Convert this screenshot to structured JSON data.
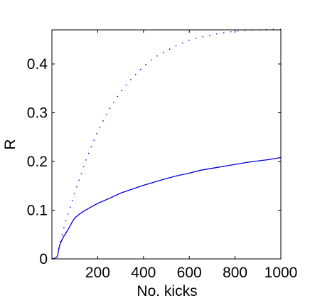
{
  "chart_data": {
    "type": "line",
    "title": "",
    "xlabel": "No. kicks",
    "ylabel": "R",
    "xlim": [
      0,
      1000
    ],
    "ylim": [
      0,
      0.47
    ],
    "xticks": [
      200,
      400,
      600,
      800,
      1000
    ],
    "xtick_labels": [
      "200",
      "400",
      "600",
      "800",
      "1000"
    ],
    "yticks": [
      0,
      0.1,
      0.2,
      0.3,
      0.4
    ],
    "ytick_labels": [
      "0",
      "0.1",
      "0.2",
      "0.3",
      "0.4"
    ],
    "grid": false,
    "colors": {
      "series": "#0000dd",
      "axes": "#000000"
    },
    "series": [
      {
        "style": "dotted",
        "color": "#0000dd",
        "x": [
          0,
          15,
          25,
          30,
          40,
          50,
          60,
          80,
          100,
          120,
          150,
          200,
          250,
          300,
          350,
          400,
          450,
          500,
          550,
          600,
          650,
          700,
          750,
          800,
          850,
          900,
          950,
          1000
        ],
        "y": [
          0,
          0.002,
          0.006,
          0.02,
          0.04,
          0.06,
          0.077,
          0.106,
          0.136,
          0.164,
          0.205,
          0.262,
          0.307,
          0.343,
          0.371,
          0.395,
          0.414,
          0.427,
          0.439,
          0.449,
          0.455,
          0.46,
          0.464,
          0.467,
          0.469,
          0.47,
          0.471,
          0.471
        ]
      },
      {
        "style": "solid",
        "color": "#0000dd",
        "x": [
          0,
          10,
          20,
          25,
          30,
          35,
          40,
          50,
          60,
          70,
          80,
          90,
          100,
          120,
          150,
          200,
          250,
          300,
          350,
          400,
          450,
          500,
          550,
          600,
          650,
          700,
          750,
          800,
          850,
          900,
          950,
          1000
        ],
        "y": [
          0,
          0.001,
          0.003,
          0.006,
          0.02,
          0.03,
          0.035,
          0.045,
          0.052,
          0.06,
          0.068,
          0.077,
          0.084,
          0.092,
          0.101,
          0.114,
          0.124,
          0.135,
          0.143,
          0.151,
          0.158,
          0.165,
          0.171,
          0.176,
          0.182,
          0.186,
          0.19,
          0.194,
          0.198,
          0.201,
          0.204,
          0.208
        ]
      }
    ]
  }
}
